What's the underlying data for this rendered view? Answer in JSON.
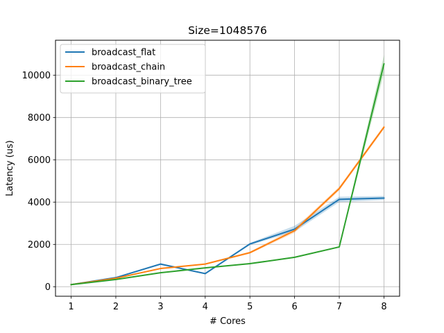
{
  "chart_data": {
    "type": "line",
    "title": "Size=1048576",
    "xlabel": "# Cores",
    "ylabel": "Latency (us)",
    "x": [
      1,
      2,
      3,
      4,
      5,
      6,
      7,
      8
    ],
    "x_ticks": [
      "1",
      "2",
      "3",
      "4",
      "5",
      "6",
      "7",
      "8"
    ],
    "y_ticks": [
      "0",
      "2000",
      "4000",
      "6000",
      "8000",
      "10000"
    ],
    "xlim": [
      0.65,
      8.35
    ],
    "ylim": [
      -450,
      11650
    ],
    "grid": true,
    "legend_position": "top-left",
    "series": [
      {
        "name": "broadcast_flat",
        "color": "#1f77b4",
        "values": [
          100,
          430,
          1070,
          620,
          2020,
          2720,
          4130,
          4190
        ],
        "band_low": [
          90,
          410,
          1030,
          590,
          1970,
          2600,
          4000,
          4100
        ],
        "band_high": [
          110,
          450,
          1110,
          650,
          2070,
          2880,
          4250,
          4290
        ]
      },
      {
        "name": "broadcast_chain",
        "color": "#ff7f0e",
        "values": [
          100,
          400,
          860,
          1070,
          1610,
          2650,
          4640,
          7540
        ],
        "band_low": [
          90,
          380,
          830,
          1040,
          1560,
          2550,
          4550,
          7450
        ],
        "band_high": [
          110,
          420,
          890,
          1100,
          1660,
          2750,
          4730,
          7630
        ]
      },
      {
        "name": "broadcast_binary_tree",
        "color": "#2ca02c",
        "values": [
          100,
          340,
          660,
          890,
          1090,
          1390,
          1880,
          10530
        ],
        "band_low": [
          90,
          320,
          640,
          870,
          1060,
          1360,
          1850,
          10100
        ],
        "band_high": [
          110,
          360,
          680,
          910,
          1120,
          1420,
          1910,
          10950
        ]
      }
    ]
  }
}
